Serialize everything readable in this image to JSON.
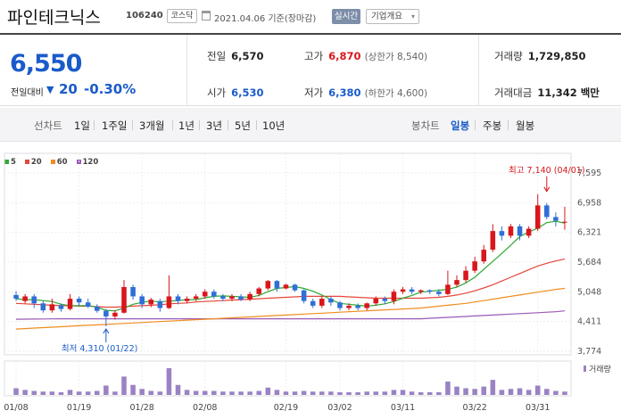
{
  "header": {
    "stock_name": "파인테크닉스",
    "stock_code": "106240",
    "market": "코스닥",
    "as_of": "2021.04.06 기준(장마감)",
    "live_button": "실시간",
    "company_button": "기업개요",
    "company_caret": "▾"
  },
  "quote": {
    "price": "6,550",
    "change_label": "전일대비",
    "change_arrow": "▼",
    "change_value": "20",
    "change_pct": "-0.30%",
    "prev_close_label": "전일",
    "prev_close": "6,570",
    "open_label": "시가",
    "open": "6,530",
    "high_label": "고가",
    "high": "6,870",
    "upper_limit": "(상한가 8,540)",
    "low_label": "저가",
    "low": "6,380",
    "lower_limit": "(하한가 4,600)",
    "volume_label": "거래량",
    "volume": "1,729,850",
    "amount_label": "거래대금",
    "amount": "11,342 백만"
  },
  "periods": {
    "line_label": "선차트",
    "line_items": [
      "1일",
      "1주일",
      "3개월",
      "1년",
      "3년",
      "5년",
      "10년"
    ],
    "candle_label": "봉차트",
    "candle_items": [
      "일봉",
      "주봉",
      "월봉"
    ],
    "selected": "일봉"
  },
  "colors": {
    "up": "#d8161c",
    "down": "#2f6fd6",
    "ma5": "#2ea832",
    "ma20": "#e5463a",
    "ma60": "#f08c1e",
    "ma120": "#9b59b6",
    "volume": "#9b82c4"
  },
  "chart_data": {
    "type": "candlestick",
    "legend": [
      {
        "name": "5",
        "color": "#2ea832"
      },
      {
        "name": "20",
        "color": "#e5463a"
      },
      {
        "name": "60",
        "color": "#f08c1e"
      },
      {
        "name": "120",
        "color": "#9b59b6"
      }
    ],
    "y_ticks": [
      "7,595",
      "6,958",
      "6,321",
      "5,684",
      "5,048",
      "4,411",
      "3,774"
    ],
    "y_range": [
      3774,
      7595
    ],
    "x_ticks": [
      {
        "label": "01/08",
        "day": 0
      },
      {
        "label": "01/19",
        "day": 7
      },
      {
        "label": "01/28",
        "day": 14
      },
      {
        "label": "02/08",
        "day": 21
      },
      {
        "label": "02/19",
        "day": 30
      },
      {
        "label": "03/02",
        "day": 36
      },
      {
        "label": "03/11",
        "day": 43
      },
      {
        "label": "03/22",
        "day": 51
      },
      {
        "label": "03/31",
        "day": 58
      }
    ],
    "volume_label": "거래량",
    "annotations": {
      "high": {
        "label": "최고 7,140 (04/01)",
        "day": 59,
        "value": 7140
      },
      "low": {
        "label": "최저 4,310 (01/22)",
        "day": 10,
        "value": 4310
      }
    },
    "candles": [
      [
        4980,
        4900,
        5060,
        4850
      ],
      [
        4850,
        4950,
        5000,
        4800
      ],
      [
        4950,
        4800,
        5000,
        4700
      ],
      [
        4800,
        4650,
        4850,
        4600
      ],
      [
        4650,
        4780,
        4900,
        4600
      ],
      [
        4760,
        4680,
        4800,
        4620
      ],
      [
        4680,
        4900,
        5000,
        4650
      ],
      [
        4900,
        4820,
        4950,
        4750
      ],
      [
        4820,
        4730,
        4900,
        4700
      ],
      [
        4730,
        4640,
        4780,
        4600
      ],
      [
        4640,
        4520,
        4680,
        4310
      ],
      [
        4520,
        4600,
        4650,
        4450
      ],
      [
        4600,
        5150,
        5300,
        4580
      ],
      [
        5150,
        4950,
        5200,
        4880
      ],
      [
        4950,
        4780,
        5000,
        4700
      ],
      [
        4780,
        4880,
        4920,
        4720
      ],
      [
        4850,
        4700,
        4900,
        4620
      ],
      [
        4700,
        4950,
        5400,
        4680
      ],
      [
        4950,
        4850,
        5000,
        4780
      ],
      [
        4850,
        4900,
        4950,
        4800
      ],
      [
        4900,
        4950,
        5000,
        4850
      ],
      [
        4950,
        5050,
        5100,
        4900
      ],
      [
        5050,
        4950,
        5100,
        4900
      ],
      [
        4950,
        4900,
        5000,
        4850
      ],
      [
        4900,
        4950,
        5000,
        4850
      ],
      [
        4950,
        4880,
        5000,
        4850
      ],
      [
        4880,
        5000,
        5050,
        4850
      ],
      [
        5000,
        5120,
        5150,
        4950
      ],
      [
        5120,
        5280,
        5300,
        5080
      ],
      [
        5280,
        5120,
        5300,
        5050
      ],
      [
        5120,
        5200,
        5220,
        5100
      ],
      [
        5200,
        5080,
        5220,
        5050
      ],
      [
        5080,
        4850,
        5100,
        4800
      ],
      [
        4850,
        4750,
        4900,
        4700
      ],
      [
        4750,
        4900,
        4950,
        4700
      ],
      [
        4900,
        4820,
        4950,
        4750
      ],
      [
        4820,
        4700,
        4850,
        4650
      ],
      [
        4700,
        4750,
        4800,
        4650
      ],
      [
        4750,
        4700,
        4800,
        4650
      ],
      [
        4700,
        4800,
        4820,
        4650
      ],
      [
        4800,
        4900,
        4950,
        4750
      ],
      [
        4900,
        4850,
        4950,
        4780
      ],
      [
        4850,
        5050,
        5100,
        4780
      ],
      [
        5050,
        5100,
        5150,
        5000
      ],
      [
        5100,
        5050,
        5150,
        5000
      ],
      [
        5050,
        5080,
        5100,
        5000
      ],
      [
        5080,
        5050,
        5100,
        5000
      ],
      [
        5050,
        5000,
        5100,
        4950
      ],
      [
        5000,
        5200,
        5500,
        4980
      ],
      [
        5200,
        5300,
        5400,
        5150
      ],
      [
        5300,
        5500,
        5600,
        5250
      ],
      [
        5500,
        5700,
        5800,
        5450
      ],
      [
        5700,
        5950,
        6050,
        5650
      ],
      [
        5950,
        6350,
        6500,
        5900
      ],
      [
        6350,
        6250,
        6450,
        6150
      ],
      [
        6250,
        6450,
        6500,
        6200
      ],
      [
        6450,
        6250,
        6500,
        6150
      ],
      [
        6250,
        6400,
        6450,
        6200
      ],
      [
        6400,
        6900,
        7140,
        6350
      ],
      [
        6900,
        6650,
        6950,
        6600
      ],
      [
        6650,
        6570,
        6750,
        6450
      ],
      [
        6530,
        6550,
        6870,
        6380
      ]
    ],
    "volumes": [
      20,
      15,
      12,
      10,
      10,
      8,
      15,
      10,
      10,
      12,
      28,
      10,
      55,
      30,
      18,
      12,
      10,
      80,
      30,
      15,
      12,
      12,
      12,
      10,
      10,
      10,
      10,
      12,
      22,
      15,
      10,
      10,
      12,
      10,
      10,
      10,
      8,
      8,
      8,
      10,
      10,
      10,
      15,
      15,
      10,
      8,
      8,
      8,
      40,
      25,
      20,
      18,
      25,
      45,
      15,
      18,
      20,
      15,
      28,
      18,
      12,
      10
    ],
    "ma5": [
      4900,
      4880,
      4880,
      4860,
      4840,
      4780,
      4750,
      4750,
      4750,
      4720,
      4650,
      4640,
      4700,
      4780,
      4820,
      4850,
      4830,
      4850,
      4860,
      4880,
      4880,
      4920,
      4950,
      4960,
      4950,
      4940,
      4930,
      4970,
      5050,
      5120,
      5140,
      5160,
      5120,
      5060,
      4980,
      4880,
      4800,
      4780,
      4760,
      4740,
      4760,
      4790,
      4840,
      4910,
      4970,
      5040,
      5060,
      5080,
      5100,
      5150,
      5240,
      5360,
      5530,
      5700,
      5870,
      6050,
      6230,
      6330,
      6410,
      6530,
      6560,
      6520
    ],
    "ma20": [
      4800,
      4790,
      4780,
      4770,
      4760,
      4750,
      4750,
      4740,
      4740,
      4730,
      4720,
      4720,
      4730,
      4740,
      4750,
      4760,
      4770,
      4790,
      4800,
      4810,
      4830,
      4840,
      4850,
      4860,
      4870,
      4880,
      4890,
      4900,
      4910,
      4920,
      4930,
      4940,
      4950,
      4950,
      4950,
      4950,
      4950,
      4940,
      4930,
      4920,
      4910,
      4910,
      4910,
      4910,
      4910,
      4910,
      4920,
      4930,
      4950,
      4980,
      5020,
      5070,
      5130,
      5200,
      5280,
      5360,
      5440,
      5520,
      5600,
      5660,
      5710,
      5750
    ],
    "ma60": [
      4250,
      4260,
      4270,
      4280,
      4290,
      4300,
      4310,
      4320,
      4330,
      4340,
      4350,
      4360,
      4370,
      4380,
      4390,
      4400,
      4410,
      4420,
      4430,
      4440,
      4450,
      4460,
      4470,
      4480,
      4490,
      4500,
      4510,
      4520,
      4530,
      4540,
      4550,
      4560,
      4570,
      4580,
      4590,
      4600,
      4610,
      4620,
      4630,
      4640,
      4650,
      4660,
      4670,
      4680,
      4690,
      4700,
      4720,
      4740,
      4760,
      4780,
      4800,
      4830,
      4860,
      4890,
      4920,
      4950,
      4980,
      5010,
      5040,
      5070,
      5100,
      5120
    ],
    "ma120": [
      4460,
      4462,
      4464,
      4466,
      4468,
      4470,
      4470,
      4470,
      4470,
      4470,
      4470,
      4470,
      4470,
      4470,
      4470,
      4470,
      4470,
      4470,
      4470,
      4470,
      4470,
      4470,
      4470,
      4470,
      4470,
      4470,
      4470,
      4470,
      4470,
      4470,
      4470,
      4470,
      4470,
      4470,
      4470,
      4470,
      4470,
      4470,
      4470,
      4470,
      4470,
      4470,
      4470,
      4470,
      4470,
      4470,
      4480,
      4490,
      4500,
      4510,
      4520,
      4530,
      4540,
      4550,
      4560,
      4570,
      4580,
      4590,
      4600,
      4610,
      4620,
      4640
    ]
  }
}
